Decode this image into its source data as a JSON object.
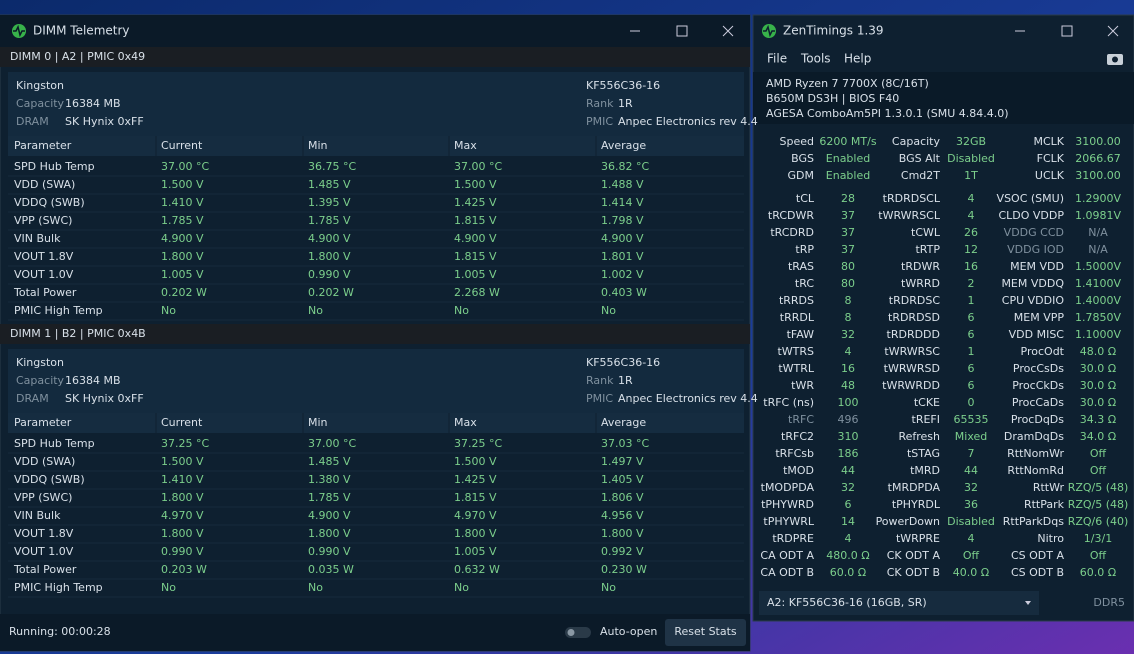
{
  "dimm_telemetry": {
    "title": "DIMM Telemetry",
    "dimms": [
      {
        "header": "DIMM 0 | A2 | PMIC 0x49",
        "vendor": "Kingston",
        "part": "KF556C36-16",
        "info_left": [
          [
            "Capacity",
            "16384 MB"
          ],
          [
            "DRAM",
            "SK Hynix 0xFF"
          ]
        ],
        "info_right": [
          [
            "Rank",
            "1R"
          ],
          [
            "PMIC",
            "Anpec Electronics rev 4.4"
          ]
        ],
        "columns": [
          "Parameter",
          "Current",
          "Min",
          "Max",
          "Average"
        ],
        "rows": [
          [
            "SPD Hub Temp",
            "37.00 °C",
            "36.75 °C",
            "37.00 °C",
            "36.82 °C"
          ],
          [
            "VDD (SWA)",
            "1.500 V",
            "1.485 V",
            "1.500 V",
            "1.488 V"
          ],
          [
            "VDDQ (SWB)",
            "1.410 V",
            "1.395 V",
            "1.425 V",
            "1.414 V"
          ],
          [
            "VPP (SWC)",
            "1.785 V",
            "1.785 V",
            "1.815 V",
            "1.798 V"
          ],
          [
            "VIN Bulk",
            "4.900 V",
            "4.900 V",
            "4.900 V",
            "4.900 V"
          ],
          [
            "VOUT 1.8V",
            "1.800 V",
            "1.800 V",
            "1.815 V",
            "1.801 V"
          ],
          [
            "VOUT 1.0V",
            "1.005 V",
            "0.990 V",
            "1.005 V",
            "1.002 V"
          ],
          [
            "Total Power",
            "0.202 W",
            "0.202 W",
            "2.268 W",
            "0.403 W"
          ],
          [
            "PMIC High Temp",
            "No",
            "No",
            "No",
            "No"
          ]
        ]
      },
      {
        "header": "DIMM 1 | B2 | PMIC 0x4B",
        "vendor": "Kingston",
        "part": "KF556C36-16",
        "info_left": [
          [
            "Capacity",
            "16384 MB"
          ],
          [
            "DRAM",
            "SK Hynix 0xFF"
          ]
        ],
        "info_right": [
          [
            "Rank",
            "1R"
          ],
          [
            "PMIC",
            "Anpec Electronics rev 4.4"
          ]
        ],
        "columns": [
          "Parameter",
          "Current",
          "Min",
          "Max",
          "Average"
        ],
        "rows": [
          [
            "SPD Hub Temp",
            "37.25 °C",
            "37.00 °C",
            "37.25 °C",
            "37.03 °C"
          ],
          [
            "VDD (SWA)",
            "1.500 V",
            "1.485 V",
            "1.500 V",
            "1.497 V"
          ],
          [
            "VDDQ (SWB)",
            "1.410 V",
            "1.380 V",
            "1.425 V",
            "1.405 V"
          ],
          [
            "VPP (SWC)",
            "1.800 V",
            "1.785 V",
            "1.815 V",
            "1.806 V"
          ],
          [
            "VIN Bulk",
            "4.970 V",
            "4.900 V",
            "4.970 V",
            "4.956 V"
          ],
          [
            "VOUT 1.8V",
            "1.800 V",
            "1.800 V",
            "1.800 V",
            "1.800 V"
          ],
          [
            "VOUT 1.0V",
            "0.990 V",
            "0.990 V",
            "1.005 V",
            "0.992 V"
          ],
          [
            "Total Power",
            "0.203 W",
            "0.035 W",
            "0.632 W",
            "0.230 W"
          ],
          [
            "PMIC High Temp",
            "No",
            "No",
            "No",
            "No"
          ]
        ]
      }
    ],
    "status": "Running: 00:00:28",
    "toggle_label": "Auto-open",
    "reset_button": "Reset Stats"
  },
  "zentimings": {
    "title": "ZenTimings 1.39",
    "menu": [
      "File",
      "Tools",
      "Help"
    ],
    "system": [
      "AMD Ryzen 7 7700X (8C/16T)",
      "B650M DS3H | BIOS F40",
      "AGESA ComboAm5PI 1.3.0.1 (SMU 4.84.4.0)"
    ],
    "summary": [
      [
        "Speed",
        "6200 MT/s",
        "Capacity",
        "32GB",
        "MCLK",
        "3100.00"
      ],
      [
        "BGS",
        "Enabled",
        "BGS Alt",
        "Disabled",
        "FCLK",
        "2066.67"
      ],
      [
        "GDM",
        "Enabled",
        "Cmd2T",
        "1T",
        "UCLK",
        "3100.00"
      ]
    ],
    "timings": [
      [
        "tCL",
        "28",
        "tRDRDSCL",
        "4",
        "VSOC (SMU)",
        "1.2900V"
      ],
      [
        "tRCDWR",
        "37",
        "tWRWRSCL",
        "4",
        "CLDO VDDP",
        "1.0981V"
      ],
      [
        "tRCDRD",
        "37",
        "tCWL",
        "26",
        "VDDG CCD",
        "N/A"
      ],
      [
        "tRP",
        "37",
        "tRTP",
        "12",
        "VDDG IOD",
        "N/A"
      ],
      [
        "tRAS",
        "80",
        "tRDWR",
        "16",
        "MEM VDD",
        "1.5000V"
      ],
      [
        "tRC",
        "80",
        "tWRRD",
        "2",
        "MEM VDDQ",
        "1.4100V"
      ],
      [
        "tRRDS",
        "8",
        "tRDRDSC",
        "1",
        "CPU VDDIO",
        "1.4000V"
      ],
      [
        "tRRDL",
        "8",
        "tRDRDSD",
        "6",
        "MEM VPP",
        "1.7850V"
      ],
      [
        "tFAW",
        "32",
        "tRDRDDD",
        "6",
        "VDD MISC",
        "1.1000V"
      ],
      [
        "tWTRS",
        "4",
        "tWRWRSC",
        "1",
        "ProcOdt",
        "48.0 Ω"
      ],
      [
        "tWTRL",
        "16",
        "tWRWRSD",
        "6",
        "ProcCsDs",
        "30.0 Ω"
      ],
      [
        "tWR",
        "48",
        "tWRWRDD",
        "6",
        "ProcCkDs",
        "30.0 Ω"
      ],
      [
        "tRFC (ns)",
        "100",
        "tCKE",
        "0",
        "ProcCaDs",
        "30.0 Ω"
      ],
      [
        "tRFC",
        "496",
        "tREFI",
        "65535",
        "ProcDqDs",
        "34.3 Ω"
      ],
      [
        "tRFC2",
        "310",
        "Refresh",
        "Mixed",
        "DramDqDs",
        "34.0 Ω"
      ],
      [
        "tRFCsb",
        "186",
        "tSTAG",
        "7",
        "RttNomWr",
        "Off"
      ],
      [
        "tMOD",
        "44",
        "tMRD",
        "44",
        "RttNomRd",
        "Off"
      ],
      [
        "tMODPDA",
        "32",
        "tMRDPDA",
        "32",
        "RttWr",
        "RZQ/5 (48)"
      ],
      [
        "tPHYWRD",
        "6",
        "tPHYRDL",
        "36",
        "RttPark",
        "RZQ/5 (48)"
      ],
      [
        "tPHYWRL",
        "14",
        "PowerDown",
        "Disabled",
        "RttParkDqs",
        "RZQ/6 (40)"
      ],
      [
        "tRDPRE",
        "4",
        "tWRPRE",
        "4",
        "Nitro",
        "1/3/1"
      ],
      [
        "CA ODT A",
        "480.0 Ω",
        "CK ODT A",
        "Off",
        "CS ODT A",
        "Off"
      ],
      [
        "CA ODT B",
        "60.0 Ω",
        "CK ODT B",
        "40.0 Ω",
        "CS ODT B",
        "60.0 Ω"
      ]
    ],
    "module_select": "A2: KF556C36-16 (16GB, SR)",
    "memory_type": "DDR5"
  }
}
